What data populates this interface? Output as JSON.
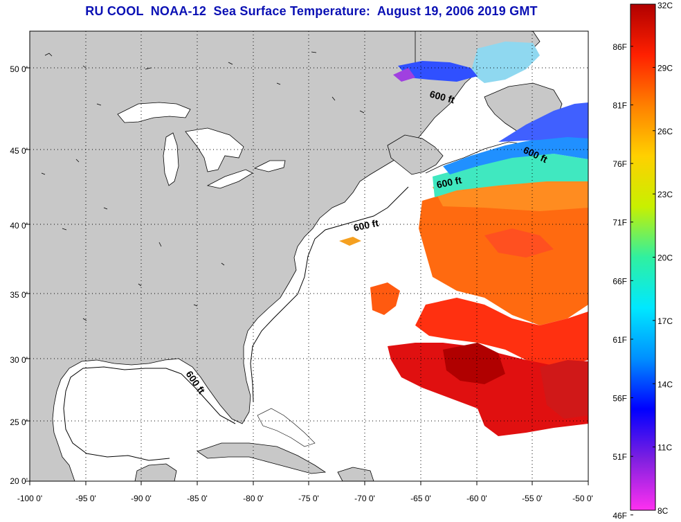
{
  "title": "RU COOL  NOAA-12  Sea Surface Temperature:  August 19, 2006 2019 GMT",
  "map": {
    "lon_labels": [
      "-100 0'",
      "-95 0'",
      "-90 0'",
      "-85 0'",
      "-80 0'",
      "-75 0'",
      "-70 0'",
      "-65 0'",
      "-60 0'",
      "-55 0'",
      "-50 0'"
    ],
    "lat_labels": [
      "50 0'",
      "45 0'",
      "40 0'",
      "35 0'",
      "30 0'",
      "25 0'",
      "20 0'"
    ],
    "isobath_labels": [
      "600 ft",
      "600 ft",
      "600 ft",
      "600 ft",
      "600 ft"
    ],
    "colors": {
      "land": "#c8c8c8",
      "ocean": "#ffffff",
      "grid": "#000000"
    }
  },
  "colorbar": {
    "celsius_labels": [
      "32C",
      "29C",
      "26C",
      "23C",
      "20C",
      "17C",
      "14C",
      "11C",
      "8C"
    ],
    "fahrenheit_labels": [
      "86F",
      "81F",
      "76F",
      "71F",
      "66F",
      "61F",
      "56F",
      "51F",
      "46F"
    ],
    "celsius_values": [
      32,
      29,
      26,
      23,
      20,
      17,
      14,
      11,
      8
    ],
    "fahrenheit_values": [
      86,
      81,
      76,
      71,
      66,
      61,
      56,
      51,
      46
    ],
    "range_c": [
      8,
      32
    ],
    "stops": [
      "#ff30f0",
      "#8020e0",
      "#0000ff",
      "#0090ff",
      "#00e8ff",
      "#30f0a0",
      "#c8f000",
      "#ffd000",
      "#ff8000",
      "#ff2000",
      "#b00000"
    ]
  }
}
